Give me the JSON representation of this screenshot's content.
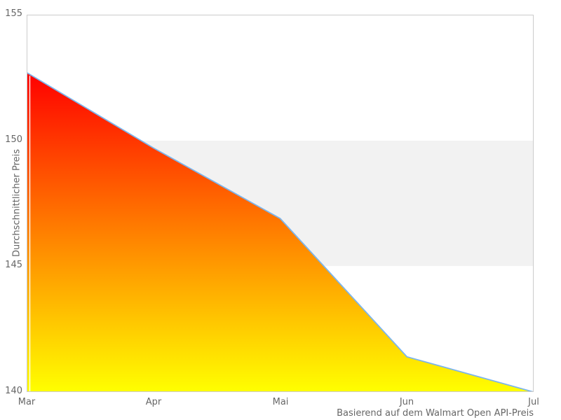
{
  "chart_data": {
    "type": "area",
    "categories": [
      "Mar",
      "Apr",
      "Mai",
      "Jun",
      "Jul"
    ],
    "values": [
      152.7,
      149.7,
      146.9,
      141.4,
      140.0
    ],
    "title": "",
    "xlabel": "Basierend auf dem Walmart Open API-Preis",
    "ylabel": "Durchschnittlicher Preis",
    "ylim": [
      140,
      155
    ],
    "yticks": [
      155,
      150,
      145,
      140
    ],
    "grid": false,
    "legend": false,
    "plot_band": {
      "from": 145,
      "to": 150,
      "color": "#f2f2f2"
    },
    "line_color": "#7cb5ec",
    "area_gradient_top": "#ff0000",
    "area_gradient_bottom": "#ffff00",
    "frame_color": "#cccccc",
    "label_color": "#666666",
    "background": "#ffffff"
  }
}
